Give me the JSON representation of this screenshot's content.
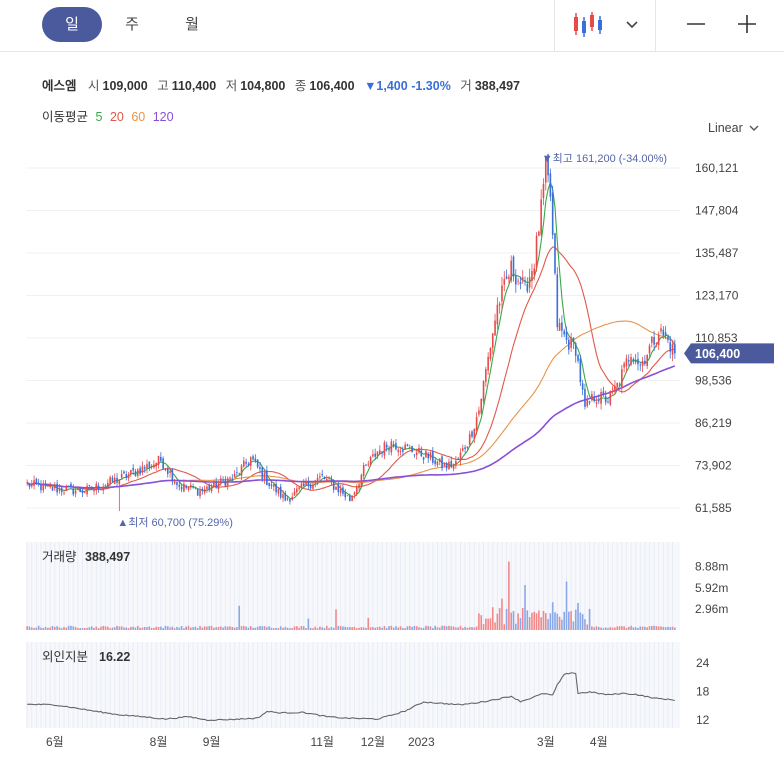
{
  "toolbar": {
    "tabs": [
      {
        "label": "일",
        "active": true
      },
      {
        "label": "주",
        "active": false
      },
      {
        "label": "월",
        "active": false
      }
    ],
    "chart_type_icon": "candlestick-icon",
    "dropdown_icon": "chevron-down-icon",
    "zoom_out_icon": "minus-icon",
    "zoom_in_icon": "plus-icon"
  },
  "quote": {
    "name": "에스엠",
    "open_label": "시",
    "open": "109,000",
    "high_label": "고",
    "high": "110,400",
    "low_label": "저",
    "low": "104,800",
    "close_label": "종",
    "close": "106,400",
    "change": "▼1,400",
    "change_pct": "-1.30%",
    "volume_label": "거",
    "volume": "388,497"
  },
  "ma_legend": {
    "label": "이동평균",
    "periods": [
      {
        "label": "5",
        "color": "#3aa84a"
      },
      {
        "label": "20",
        "color": "#e0594a"
      },
      {
        "label": "60",
        "color": "#e8944a"
      },
      {
        "label": "120",
        "color": "#8a4fd8"
      }
    ]
  },
  "scale_mode": "Linear",
  "colors": {
    "up": "#e84a4a",
    "down": "#3a6fd8",
    "price_badge": "#4a5a9c",
    "line": "#666666"
  },
  "chart_data": {
    "type": "candlestick",
    "price_axis": {
      "ticks": [
        160121,
        147804,
        135487,
        123170,
        110853,
        98536,
        86219,
        73902,
        61585
      ],
      "tick_labels": [
        "160,121",
        "147,804",
        "135,487",
        "123,170",
        "110,853",
        "98,536",
        "86,219",
        "73,902",
        "61,585"
      ],
      "range": [
        58000,
        166000
      ],
      "current": 106400,
      "current_label": "106,400"
    },
    "annotations": {
      "high_label": "▼최고 161,200 (-34.00%)",
      "high_value": 161200,
      "low_label": "▲최저 60,700 (75.29%)",
      "low_value": 60700
    },
    "close_anchors": [
      [
        0,
        68500
      ],
      [
        10,
        67200
      ],
      [
        25,
        66500
      ],
      [
        40,
        70000
      ],
      [
        50,
        73000
      ],
      [
        58,
        75500
      ],
      [
        66,
        68000
      ],
      [
        75,
        66500
      ],
      [
        90,
        70500
      ],
      [
        97,
        76000
      ],
      [
        104,
        69500
      ],
      [
        112,
        64000
      ],
      [
        122,
        68500
      ],
      [
        128,
        70500
      ],
      [
        136,
        66500
      ],
      [
        140,
        64000
      ],
      [
        146,
        72500
      ],
      [
        152,
        78000
      ],
      [
        158,
        80500
      ],
      [
        166,
        78500
      ],
      [
        174,
        76500
      ],
      [
        181,
        73500
      ],
      [
        186,
        74500
      ],
      [
        192,
        82000
      ],
      [
        196,
        90000
      ],
      [
        200,
        105000
      ],
      [
        204,
        120000
      ],
      [
        210,
        131000
      ],
      [
        216,
        125000
      ],
      [
        220,
        133000
      ],
      [
        223,
        148000
      ],
      [
        225,
        160000
      ],
      [
        227,
        152000
      ],
      [
        230,
        115000
      ],
      [
        234,
        110000
      ],
      [
        238,
        108000
      ],
      [
        242,
        90000
      ],
      [
        246,
        94000
      ],
      [
        252,
        93000
      ],
      [
        256,
        97000
      ],
      [
        262,
        107000
      ],
      [
        266,
        103000
      ],
      [
        270,
        108000
      ],
      [
        274,
        113000
      ],
      [
        278,
        110000
      ],
      [
        281,
        106400
      ]
    ],
    "n_sessions": 282,
    "volume": {
      "title": "거래량",
      "value": "388,497",
      "ticks": [
        8.88,
        5.92,
        2.96
      ],
      "tick_labels": [
        "8.88m",
        "5.92m",
        "2.96m"
      ],
      "unit": "m",
      "max": 11.5
    },
    "foreign": {
      "title": "외인지분",
      "value": "16.22",
      "ticks": [
        24,
        18,
        12
      ],
      "tick_labels": [
        "24",
        "18",
        "12"
      ],
      "range": [
        11,
        25
      ],
      "anchors": [
        [
          0,
          15.3
        ],
        [
          12,
          15.2
        ],
        [
          20,
          14.6
        ],
        [
          30,
          13.8
        ],
        [
          40,
          13.1
        ],
        [
          50,
          12.7
        ],
        [
          60,
          12.2
        ],
        [
          70,
          12.7
        ],
        [
          78,
          12.0
        ],
        [
          88,
          12.1
        ],
        [
          96,
          12.3
        ],
        [
          100,
          12.4
        ],
        [
          104,
          13.8
        ],
        [
          110,
          13.5
        ],
        [
          120,
          13.6
        ],
        [
          130,
          12.7
        ],
        [
          138,
          12.4
        ],
        [
          146,
          12.3
        ],
        [
          152,
          12.2
        ],
        [
          158,
          13.0
        ],
        [
          164,
          13.9
        ],
        [
          172,
          15.8
        ],
        [
          180,
          15.5
        ],
        [
          188,
          15.2
        ],
        [
          196,
          15.7
        ],
        [
          204,
          16.4
        ],
        [
          210,
          17.0
        ],
        [
          214,
          15.9
        ],
        [
          218,
          16.5
        ],
        [
          224,
          17.6
        ],
        [
          228,
          17.2
        ],
        [
          230,
          19.4
        ],
        [
          233,
          21.5
        ],
        [
          236,
          22.0
        ],
        [
          238,
          21.8
        ],
        [
          239,
          17.6
        ],
        [
          244,
          17.9
        ],
        [
          252,
          17.3
        ],
        [
          258,
          17.6
        ],
        [
          264,
          17.4
        ],
        [
          272,
          16.6
        ],
        [
          281,
          16.2
        ]
      ]
    },
    "x_axis": {
      "ticks": [
        {
          "label": "6월",
          "i": 12
        },
        {
          "label": "8월",
          "i": 57
        },
        {
          "label": "9월",
          "i": 80
        },
        {
          "label": "11월",
          "i": 128
        },
        {
          "label": "12월",
          "i": 150
        },
        {
          "label": "2023",
          "i": 171
        },
        {
          "label": "3월",
          "i": 225
        },
        {
          "label": "4월",
          "i": 248
        }
      ]
    }
  }
}
